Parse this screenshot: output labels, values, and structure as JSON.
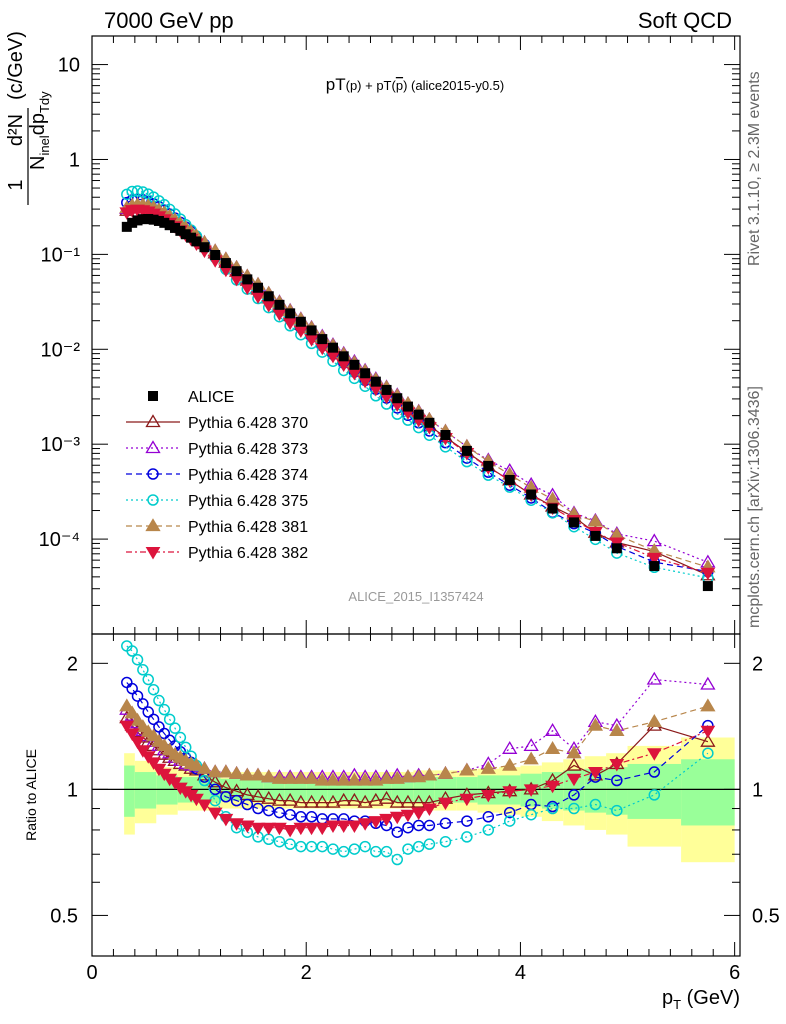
{
  "header": {
    "left": "7000 GeV pp",
    "right": "Soft QCD"
  },
  "side_labels": {
    "rivet": "Rivet 3.1.10, ≥ 2.3M events",
    "mcplots": "mcplots.cern.ch [arXiv:1306.3436]"
  },
  "chart_data": {
    "type": "scatter",
    "title_parts": {
      "a": "pT",
      "b": "(p) + pT(",
      "c": "p",
      "d": ") (alice2015-y0.5)"
    },
    "analysis": "ALICE_2015_I1357424",
    "xlabel": {
      "main": "p",
      "sub": "T",
      "unit": " (GeV)"
    },
    "ylabel": {
      "num": "1",
      "num2": "d²N",
      "den": "N",
      "den_sub": "inel",
      "den2": "dp",
      "den2_sub": "Tdy",
      "unit": "(c/GeV)"
    },
    "ratio_ylabel": "Ratio to ALICE",
    "xlim": [
      0,
      6.05
    ],
    "ylim": [
      1e-05,
      20
    ],
    "ratio_ylim": [
      0.4,
      2.35
    ],
    "x_ticks": [
      "0",
      "2",
      "4",
      "6"
    ],
    "y_ticks": [
      "10",
      "1",
      "10⁻¹",
      "10⁻²",
      "10⁻³",
      "10⁻⁴"
    ],
    "ratio_ticks": [
      "2",
      "1",
      "0.5"
    ],
    "x": [
      0.325,
      0.375,
      0.425,
      0.475,
      0.525,
      0.575,
      0.625,
      0.675,
      0.725,
      0.775,
      0.825,
      0.875,
      0.925,
      0.975,
      1.05,
      1.15,
      1.25,
      1.35,
      1.45,
      1.55,
      1.65,
      1.75,
      1.85,
      1.95,
      2.05,
      2.15,
      2.25,
      2.35,
      2.45,
      2.55,
      2.65,
      2.75,
      2.85,
      2.95,
      3.05,
      3.15,
      3.3,
      3.5,
      3.7,
      3.9,
      4.1,
      4.3,
      4.5,
      4.7,
      4.9,
      5.25,
      5.75
    ],
    "alice": [
      0.195,
      0.215,
      0.228,
      0.235,
      0.236,
      0.232,
      0.225,
      0.215,
      0.203,
      0.19,
      0.177,
      0.163,
      0.15,
      0.137,
      0.119,
      0.0985,
      0.081,
      0.0665,
      0.0545,
      0.0445,
      0.0362,
      0.0294,
      0.0239,
      0.0195,
      0.0158,
      0.0128,
      0.0104,
      0.00843,
      0.00686,
      0.00559,
      0.00456,
      0.00373,
      0.00305,
      0.00249,
      0.00205,
      0.00168,
      0.00125,
      0.00085,
      0.00059,
      0.00042,
      0.000295,
      0.00021,
      0.00015,
      0.000108,
      8e-05,
      5.2e-05,
      3.2e-05
    ],
    "ratios": {
      "370": [
        1.48,
        1.42,
        1.37,
        1.33,
        1.3,
        1.27,
        1.24,
        1.21,
        1.19,
        1.17,
        1.15,
        1.14,
        1.12,
        1.11,
        1.08,
        1.04,
        1.01,
        0.99,
        0.97,
        0.96,
        0.95,
        0.94,
        0.94,
        0.93,
        0.93,
        0.93,
        0.93,
        0.94,
        0.94,
        0.93,
        0.94,
        0.95,
        0.93,
        0.93,
        0.93,
        0.93,
        0.95,
        0.97,
        0.98,
        0.99,
        1.0,
        1.05,
        1.14,
        1.08,
        1.15,
        1.42,
        1.3
      ],
      "373": [
        1.55,
        1.5,
        1.44,
        1.38,
        1.34,
        1.3,
        1.27,
        1.24,
        1.22,
        1.19,
        1.17,
        1.15,
        1.14,
        1.13,
        1.12,
        1.1,
        1.1,
        1.09,
        1.08,
        1.08,
        1.07,
        1.07,
        1.07,
        1.07,
        1.07,
        1.07,
        1.07,
        1.07,
        1.08,
        1.07,
        1.07,
        1.07,
        1.08,
        1.07,
        1.08,
        1.08,
        1.09,
        1.11,
        1.15,
        1.25,
        1.27,
        1.38,
        1.25,
        1.45,
        1.42,
        1.83,
        1.78
      ],
      "374": [
        1.8,
        1.74,
        1.67,
        1.6,
        1.53,
        1.47,
        1.41,
        1.36,
        1.31,
        1.27,
        1.23,
        1.19,
        1.16,
        1.12,
        1.07,
        1.0,
        0.96,
        0.94,
        0.92,
        0.9,
        0.89,
        0.88,
        0.87,
        0.86,
        0.86,
        0.85,
        0.85,
        0.85,
        0.84,
        0.84,
        0.83,
        0.82,
        0.79,
        0.81,
        0.82,
        0.82,
        0.83,
        0.84,
        0.86,
        0.88,
        0.92,
        0.91,
        0.97,
        1.07,
        1.05,
        1.1,
        1.42
      ],
      "375": [
        2.2,
        2.14,
        2.04,
        1.93,
        1.83,
        1.73,
        1.63,
        1.55,
        1.47,
        1.4,
        1.33,
        1.26,
        1.2,
        1.14,
        1.05,
        0.94,
        0.86,
        0.81,
        0.79,
        0.77,
        0.76,
        0.75,
        0.74,
        0.73,
        0.73,
        0.73,
        0.72,
        0.71,
        0.72,
        0.73,
        0.71,
        0.71,
        0.68,
        0.72,
        0.73,
        0.74,
        0.75,
        0.77,
        0.8,
        0.84,
        0.87,
        0.9,
        0.9,
        0.92,
        0.89,
        0.97,
        1.22
      ],
      "381": [
        1.58,
        1.52,
        1.46,
        1.41,
        1.37,
        1.34,
        1.3,
        1.27,
        1.24,
        1.21,
        1.19,
        1.17,
        1.15,
        1.14,
        1.12,
        1.1,
        1.1,
        1.09,
        1.08,
        1.08,
        1.07,
        1.06,
        1.06,
        1.06,
        1.06,
        1.05,
        1.05,
        1.05,
        1.05,
        1.05,
        1.05,
        1.06,
        1.06,
        1.07,
        1.07,
        1.08,
        1.09,
        1.11,
        1.12,
        1.14,
        1.18,
        1.25,
        1.22,
        1.42,
        1.38,
        1.45,
        1.58
      ],
      "382": [
        1.42,
        1.36,
        1.3,
        1.24,
        1.2,
        1.16,
        1.12,
        1.09,
        1.06,
        1.04,
        1.01,
        0.99,
        0.97,
        0.95,
        0.92,
        0.88,
        0.85,
        0.83,
        0.82,
        0.81,
        0.81,
        0.81,
        0.8,
        0.81,
        0.81,
        0.81,
        0.82,
        0.82,
        0.82,
        0.83,
        0.84,
        0.85,
        0.86,
        0.87,
        0.88,
        0.9,
        0.93,
        0.95,
        0.97,
        0.99,
        1.0,
        1.02,
        1.06,
        1.1,
        1.15,
        1.22,
        1.38
      ]
    },
    "band_x_edges": [
      0.3,
      0.4,
      0.6,
      0.8,
      1.0,
      1.2,
      1.4,
      1.6,
      1.8,
      2.0,
      2.2,
      2.4,
      2.6,
      2.8,
      3.0,
      3.2,
      3.4,
      3.6,
      3.8,
      4.0,
      4.2,
      4.4,
      4.6,
      4.8,
      5.0,
      5.5,
      6.0
    ],
    "band_inner": [
      0.14,
      0.1,
      0.08,
      0.07,
      0.07,
      0.06,
      0.06,
      0.06,
      0.06,
      0.06,
      0.06,
      0.06,
      0.06,
      0.07,
      0.07,
      0.07,
      0.07,
      0.08,
      0.08,
      0.09,
      0.1,
      0.11,
      0.12,
      0.13,
      0.15,
      0.18
    ],
    "band_outer": [
      0.22,
      0.17,
      0.13,
      0.11,
      0.11,
      0.1,
      0.1,
      0.1,
      0.1,
      0.1,
      0.1,
      0.1,
      0.1,
      0.1,
      0.11,
      0.11,
      0.11,
      0.12,
      0.13,
      0.14,
      0.16,
      0.18,
      0.2,
      0.22,
      0.27,
      0.33
    ],
    "series": [
      {
        "name": "ALICE",
        "key": "alice",
        "color": "#000000",
        "marker": "square",
        "dash": ""
      },
      {
        "name": "Pythia 6.428 370",
        "key": "370",
        "color": "#8b1a1a",
        "marker": "tri-up-open",
        "dash": ""
      },
      {
        "name": "Pythia 6.428 373",
        "key": "373",
        "color": "#9400d3",
        "marker": "tri-up-open",
        "dash": "2,3"
      },
      {
        "name": "Pythia 6.428 374",
        "key": "374",
        "color": "#0000dd",
        "marker": "circle-open",
        "dash": "6,4"
      },
      {
        "name": "Pythia 6.428 375",
        "key": "375",
        "color": "#00cccc",
        "marker": "circle-open",
        "dash": "2,3"
      },
      {
        "name": "Pythia 6.428 381",
        "key": "381",
        "color": "#b8864b",
        "marker": "tri-up-filled",
        "dash": "6,4"
      },
      {
        "name": "Pythia 6.428 382",
        "key": "382",
        "color": "#dc143c",
        "marker": "tri-down-filled",
        "dash": "6,3,2,3"
      }
    ],
    "band_colors": {
      "inner": "#99ff99",
      "outer": "#ffff99"
    }
  }
}
